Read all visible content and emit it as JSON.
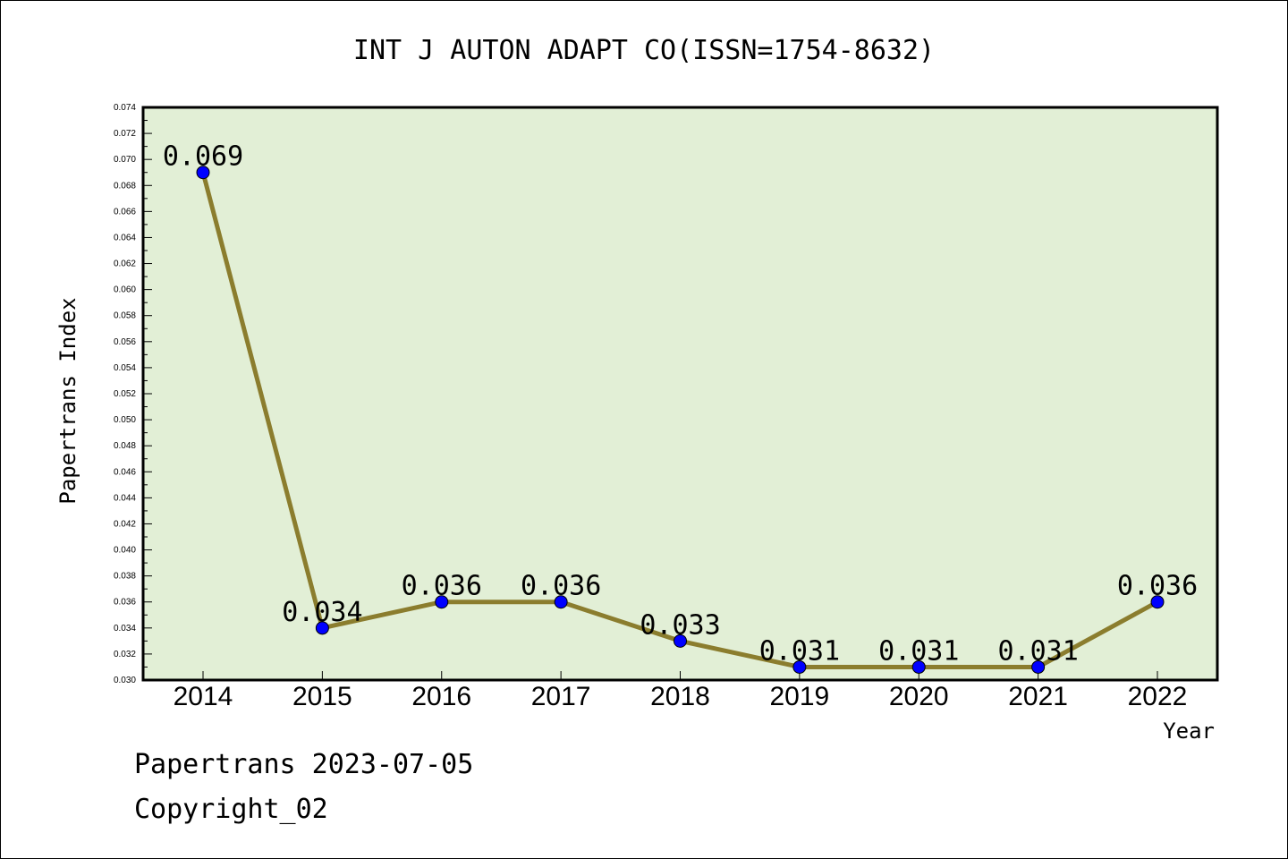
{
  "chart_data": {
    "type": "line",
    "title": "INT J AUTON ADAPT CO(ISSN=1754-8632)",
    "xlabel": "Year",
    "ylabel": "Papertrans Index",
    "categories": [
      "2014",
      "2015",
      "2016",
      "2017",
      "2018",
      "2019",
      "2020",
      "2021",
      "2022"
    ],
    "series": [
      {
        "values": [
          0.069,
          0.034,
          0.036,
          0.036,
          0.033,
          0.031,
          0.031,
          0.031,
          0.036
        ],
        "labels": [
          "0.069",
          "0.034",
          "0.036",
          "0.036",
          "0.033",
          "0.031",
          "0.031",
          "0.031",
          "0.036"
        ]
      }
    ],
    "ylim": [
      0.03,
      0.074
    ],
    "yticks": [
      "0.030",
      "0.032",
      "0.034",
      "0.036",
      "0.038",
      "0.040",
      "0.042",
      "0.044",
      "0.046",
      "0.048",
      "0.050",
      "0.052",
      "0.054",
      "0.056",
      "0.058",
      "0.060",
      "0.062",
      "0.064",
      "0.066",
      "0.068",
      "0.070",
      "0.072",
      "0.074"
    ],
    "grid": false,
    "colors": {
      "plot_background": "#e2efd6",
      "line": "#8b7d2e",
      "marker": "#0000ff"
    }
  },
  "footer": {
    "line1": "Papertrans 2023-07-05",
    "line2": "Copyright_02"
  }
}
